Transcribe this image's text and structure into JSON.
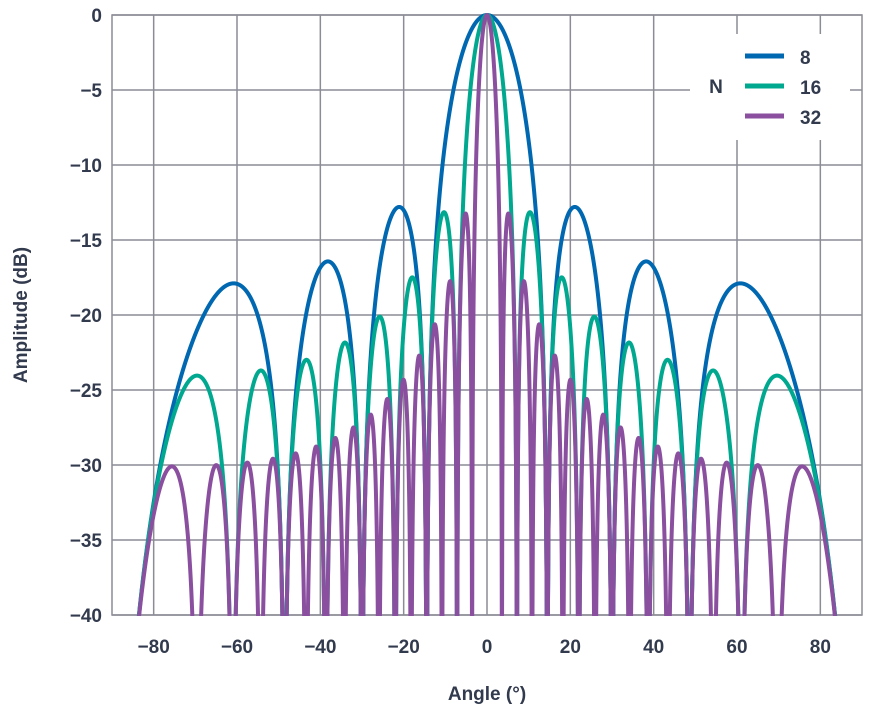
{
  "chart_data": {
    "type": "line",
    "title": "",
    "xlabel": "Angle (°)",
    "ylabel": "Amplitude (dB)",
    "xlim": [
      -90,
      90
    ],
    "ylim": [
      -40,
      0
    ],
    "xticks": [
      -80,
      -60,
      -40,
      -20,
      0,
      20,
      40,
      60,
      80
    ],
    "yticks": [
      0,
      -5,
      -10,
      -15,
      -20,
      -25,
      -30,
      -35,
      -40
    ],
    "xtick_labels": [
      "−80",
      "−60",
      "−40",
      "−20",
      "0",
      "20",
      "40",
      "60",
      "80"
    ],
    "ytick_labels": [
      "0",
      "−5",
      "−10",
      "−15",
      "−20",
      "−25",
      "−30",
      "−35",
      "−40"
    ],
    "grid": true,
    "legend": {
      "title": "N",
      "placement": "top-right"
    },
    "series": [
      {
        "name": "8",
        "N": 8,
        "color": "#0067b1",
        "sidelobe_peaks_db": [
          -12.8,
          -16.5,
          -17.9
        ]
      },
      {
        "name": "16",
        "N": 16,
        "color": "#00a88f",
        "sidelobe_peaks_db": [
          -13.1,
          -17.5,
          -20.1,
          -21.9,
          -23.0,
          -23.7,
          -24.1
        ]
      },
      {
        "name": "32",
        "N": 32,
        "color": "#8a4f9e",
        "sidelobe_peaks_db": [
          -13.2,
          -17.7,
          -20.5,
          -22.6,
          -24.3,
          -25.6,
          -26.6,
          -27.4,
          -28.1,
          -28.7,
          -29.2,
          -29.6,
          -29.9,
          -30.1
        ]
      }
    ]
  }
}
